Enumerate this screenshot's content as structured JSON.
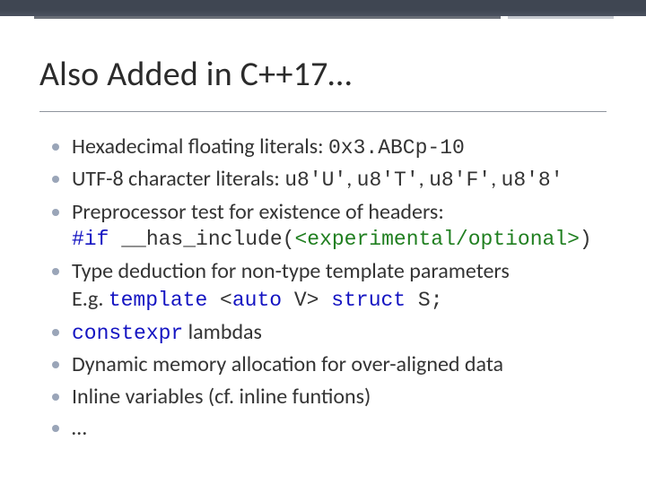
{
  "colors": {
    "background": "#ffffff",
    "top_accent": "#3f4652",
    "divider_dark": "#6a6f78",
    "divider_light": "#c5c8cf",
    "title_rule": "#8f949d",
    "bullet_dot": "#9aa5b8",
    "text": "#343434",
    "keyword_blue": "#1414c2",
    "include_green": "#207f20"
  },
  "fonts": {
    "title_size_pt": 28,
    "body_size_pt": 18,
    "code_family": "Courier New"
  },
  "title": "Also Added in C++17…",
  "bullets": {
    "b1_a": "Hexadecimal floating literals: ",
    "b1_b": "0x3.ABCp-10",
    "b2_a": "UTF-8 character literals: ",
    "b2_b": "u8'U'",
    "b2_c": ", ",
    "b2_d": "u8'T'",
    "b2_e": ", ",
    "b2_f": "u8'F'",
    "b2_g": ", ",
    "b2_h": "u8'8'",
    "b3": "Preprocessor test for existence of headers:",
    "b3_code_a": "#if",
    "b3_code_b": " __has_include(",
    "b3_code_c": "<experimental/optional>",
    "b3_code_d": ")",
    "b4_a": "Type deduction for non-type template parameters",
    "b4_b": "E.g. ",
    "b4_c": "template",
    "b4_d": " <",
    "b4_e": "auto",
    "b4_f": " V> ",
    "b4_g": "struct",
    "b4_h": " S;",
    "b5_a": "constexpr",
    "b5_b": " lambdas",
    "b6": "Dynamic memory allocation for over-aligned data",
    "b7": "Inline variables (cf. inline funtions)",
    "b8": "…"
  }
}
